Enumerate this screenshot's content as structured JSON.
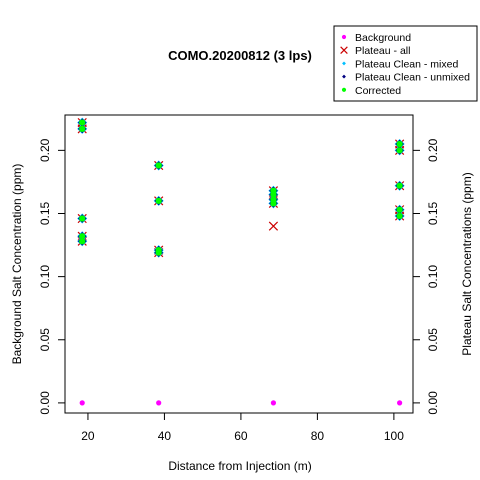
{
  "chart_data": {
    "type": "scatter",
    "title": "COMO.20200812 (3 lps)",
    "xlabel": "Distance from Injection (m)",
    "ylabel": "Background Salt Concentration (ppm)",
    "y2label": "Plateau Salt Concentrations (ppm)",
    "xlim": [
      14,
      105
    ],
    "ylim": [
      -0.008,
      0.228
    ],
    "x_ticks": [
      20,
      40,
      60,
      80,
      100
    ],
    "y_ticks": [
      0.0,
      0.05,
      0.1,
      0.15,
      0.2
    ],
    "x_tick_labels": [
      "20",
      "40",
      "60",
      "80",
      "100"
    ],
    "y_tick_labels": [
      "0.00",
      "0.05",
      "0.10",
      "0.15",
      "0.20"
    ],
    "grid": false,
    "legend_position": "top-right",
    "colors": {
      "background": "#ff00ff",
      "plateau_all": "#cc0000",
      "plateau_clean_mixed": "#00bfff",
      "plateau_clean_unmixed": "#000080",
      "corrected": "#00ff00"
    },
    "legend": [
      {
        "name": "Background",
        "marker": "dot",
        "color_key": "background"
      },
      {
        "name": "Plateau - all",
        "marker": "x",
        "color_key": "plateau_all"
      },
      {
        "name": "Plateau Clean - mixed",
        "marker": "diamond-small",
        "color_key": "plateau_clean_mixed"
      },
      {
        "name": "Plateau Clean - unmixed",
        "marker": "diamond-small",
        "color_key": "plateau_clean_unmixed"
      },
      {
        "name": "Corrected",
        "marker": "dot",
        "color_key": "corrected"
      }
    ],
    "series": [
      {
        "name": "Background",
        "marker": "dot",
        "color_key": "background",
        "points": [
          [
            18.5,
            0.0
          ],
          [
            38.5,
            0.0
          ],
          [
            68.5,
            0.0
          ],
          [
            101.5,
            0.0
          ]
        ]
      },
      {
        "name": "Plateau - all",
        "marker": "x",
        "color_key": "plateau_all",
        "points": [
          [
            18.5,
            0.222
          ],
          [
            18.5,
            0.217
          ],
          [
            18.5,
            0.146
          ],
          [
            18.5,
            0.132
          ],
          [
            18.5,
            0.128
          ],
          [
            38.5,
            0.188
          ],
          [
            38.5,
            0.16
          ],
          [
            38.5,
            0.121
          ],
          [
            38.5,
            0.119
          ],
          [
            68.5,
            0.168
          ],
          [
            68.5,
            0.165
          ],
          [
            68.5,
            0.161
          ],
          [
            68.5,
            0.158
          ],
          [
            68.5,
            0.14
          ],
          [
            101.5,
            0.205
          ],
          [
            101.5,
            0.2
          ],
          [
            101.5,
            0.172
          ],
          [
            101.5,
            0.153
          ],
          [
            101.5,
            0.148
          ]
        ]
      },
      {
        "name": "Plateau Clean - mixed",
        "marker": "diamond",
        "color_key": "plateau_clean_mixed",
        "points": [
          [
            18.5,
            0.222
          ],
          [
            18.5,
            0.217
          ],
          [
            18.5,
            0.146
          ],
          [
            18.5,
            0.132
          ],
          [
            18.5,
            0.128
          ],
          [
            38.5,
            0.188
          ],
          [
            38.5,
            0.16
          ],
          [
            38.5,
            0.121
          ],
          [
            38.5,
            0.119
          ],
          [
            68.5,
            0.168
          ],
          [
            68.5,
            0.165
          ],
          [
            68.5,
            0.161
          ],
          [
            68.5,
            0.158
          ],
          [
            101.5,
            0.205
          ],
          [
            101.5,
            0.2
          ],
          [
            101.5,
            0.172
          ],
          [
            101.5,
            0.153
          ],
          [
            101.5,
            0.148
          ]
        ]
      },
      {
        "name": "Plateau Clean - unmixed",
        "marker": "diamond",
        "color_key": "plateau_clean_unmixed",
        "points": [
          [
            18.5,
            0.222
          ],
          [
            18.5,
            0.217
          ],
          [
            18.5,
            0.146
          ],
          [
            18.5,
            0.132
          ],
          [
            18.5,
            0.128
          ],
          [
            38.5,
            0.188
          ],
          [
            38.5,
            0.16
          ],
          [
            38.5,
            0.121
          ],
          [
            38.5,
            0.119
          ],
          [
            68.5,
            0.168
          ],
          [
            68.5,
            0.165
          ],
          [
            68.5,
            0.161
          ],
          [
            68.5,
            0.158
          ],
          [
            101.5,
            0.205
          ],
          [
            101.5,
            0.2
          ],
          [
            101.5,
            0.172
          ],
          [
            101.5,
            0.153
          ],
          [
            101.5,
            0.148
          ]
        ]
      },
      {
        "name": "Corrected",
        "marker": "dot",
        "color_key": "corrected",
        "points": [
          [
            18.5,
            0.222
          ],
          [
            18.5,
            0.217
          ],
          [
            18.5,
            0.146
          ],
          [
            18.5,
            0.132
          ],
          [
            18.5,
            0.128
          ],
          [
            38.5,
            0.188
          ],
          [
            38.5,
            0.16
          ],
          [
            38.5,
            0.121
          ],
          [
            38.5,
            0.119
          ],
          [
            68.5,
            0.168
          ],
          [
            68.5,
            0.165
          ],
          [
            68.5,
            0.161
          ],
          [
            68.5,
            0.158
          ],
          [
            101.5,
            0.205
          ],
          [
            101.5,
            0.2
          ],
          [
            101.5,
            0.172
          ],
          [
            101.5,
            0.153
          ],
          [
            101.5,
            0.148
          ]
        ]
      }
    ]
  }
}
